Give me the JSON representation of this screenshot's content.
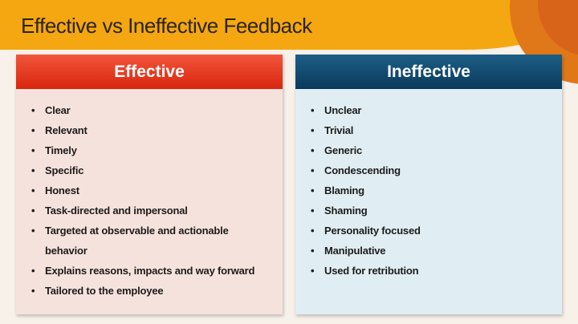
{
  "title": "Effective vs Ineffective Feedback",
  "colors": {
    "band": "#f5a712",
    "effective_header": "#e33a1e",
    "ineffective_header": "#0f4468",
    "effective_body": "#f6e2dc",
    "ineffective_body": "#e0eef3"
  },
  "effective": {
    "heading": "Effective",
    "items": [
      "Clear",
      "Relevant",
      "Timely",
      "Specific",
      "Honest",
      "Task-directed and impersonal",
      "Targeted at observable and actionable behavior",
      "Explains reasons, impacts and way forward",
      "Tailored to the employee"
    ]
  },
  "ineffective": {
    "heading": "Ineffective",
    "items": [
      "Unclear",
      "Trivial",
      "Generic",
      "Condescending",
      "Blaming",
      "Shaming",
      "Personality focused",
      "Manipulative",
      "Used for retribution"
    ]
  }
}
